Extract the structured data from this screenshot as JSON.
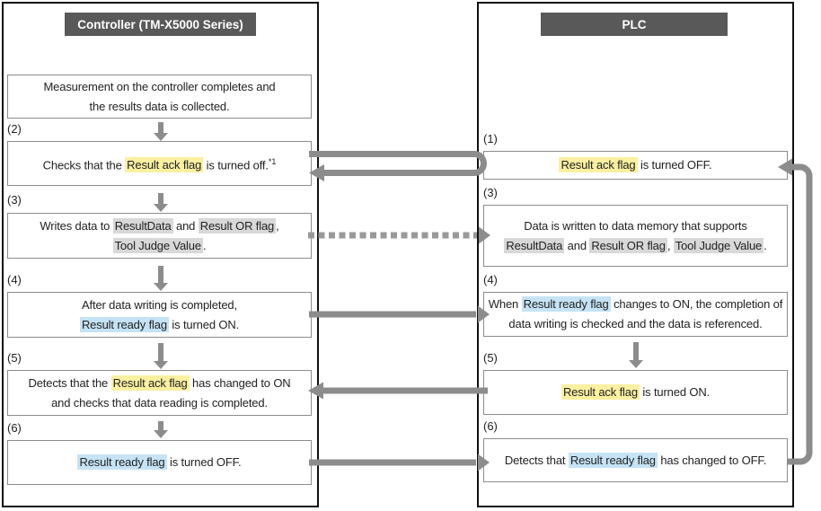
{
  "left_panel": {
    "title": "Controller (TM-X5000 Series)",
    "steps": [
      {
        "label": "",
        "lines": [
          [
            {
              "t": "Measurement on the controller completes and"
            }
          ],
          [
            {
              "t": "the results data is collected."
            }
          ]
        ]
      },
      {
        "label": "(2)",
        "lines": [
          [
            {
              "t": "Checks that the "
            },
            {
              "t": "Result ack flag",
              "h": "yellow"
            },
            {
              "t": " is turned off."
            },
            {
              "t": "*1",
              "sup": true
            }
          ]
        ]
      },
      {
        "label": "(3)",
        "lines": [
          [
            {
              "t": "Writes data to "
            },
            {
              "t": "ResultData",
              "h": "gray"
            },
            {
              "t": " and "
            },
            {
              "t": "Result OR flag",
              "h": "gray"
            },
            {
              "t": ","
            }
          ],
          [
            {
              "t": "Tool Judge Value",
              "h": "gray"
            },
            {
              "t": "."
            }
          ]
        ]
      },
      {
        "label": "(4)",
        "lines": [
          [
            {
              "t": "After data writing is completed,"
            }
          ],
          [
            {
              "t": "Result ready flag",
              "h": "blue"
            },
            {
              "t": " is turned ON."
            }
          ]
        ]
      },
      {
        "label": "(5)",
        "lines": [
          [
            {
              "t": "Detects that the "
            },
            {
              "t": "Result ack flag",
              "h": "yellow"
            },
            {
              "t": " has changed to ON"
            }
          ],
          [
            {
              "t": "and checks that data reading is completed."
            }
          ]
        ]
      },
      {
        "label": "(6)",
        "lines": [
          [
            {
              "t": "Result ready flag",
              "h": "blue"
            },
            {
              "t": " is turned OFF."
            }
          ]
        ]
      }
    ]
  },
  "right_panel": {
    "title": "PLC",
    "steps": [
      {
        "label": "(1)",
        "lines": [
          [
            {
              "t": "Result ack flag",
              "h": "yellow"
            },
            {
              "t": " is turned OFF."
            }
          ]
        ]
      },
      {
        "label": "(3)",
        "lines": [
          [
            {
              "t": "Data is written to data memory that supports"
            }
          ],
          [
            {
              "t": "ResultData",
              "h": "gray"
            },
            {
              "t": " and "
            },
            {
              "t": "Result OR flag",
              "h": "gray"
            },
            {
              "t": ", "
            },
            {
              "t": "Tool Judge Value",
              "h": "gray"
            },
            {
              "t": "."
            }
          ]
        ]
      },
      {
        "label": "(4)",
        "lines": [
          [
            {
              "t": "When "
            },
            {
              "t": "Result ready flag",
              "h": "blue"
            },
            {
              "t": " changes to ON, the completion of"
            }
          ],
          [
            {
              "t": "data writing is checked and the data is referenced."
            }
          ]
        ]
      },
      {
        "label": "(5)",
        "lines": [
          [
            {
              "t": "Result ack flag",
              "h": "yellow"
            },
            {
              "t": " is turned ON."
            }
          ]
        ]
      },
      {
        "label": "(6)",
        "lines": [
          [
            {
              "t": "Detects that "
            },
            {
              "t": "Result ready flag",
              "h": "blue"
            },
            {
              "t": " has changed to OFF."
            }
          ]
        ]
      }
    ]
  },
  "footnote_marker": "*1",
  "colors": {
    "header_bg": "#595959",
    "header_text": "#ffffff",
    "highlight_yellow": "#faf0a0",
    "highlight_blue": "#c5e3f5",
    "highlight_gray": "#d8d8d8",
    "arrow_gray": "#8c8c8c",
    "box_border": "#8c8c8c",
    "panel_border": "#111111",
    "text": "#222222"
  }
}
